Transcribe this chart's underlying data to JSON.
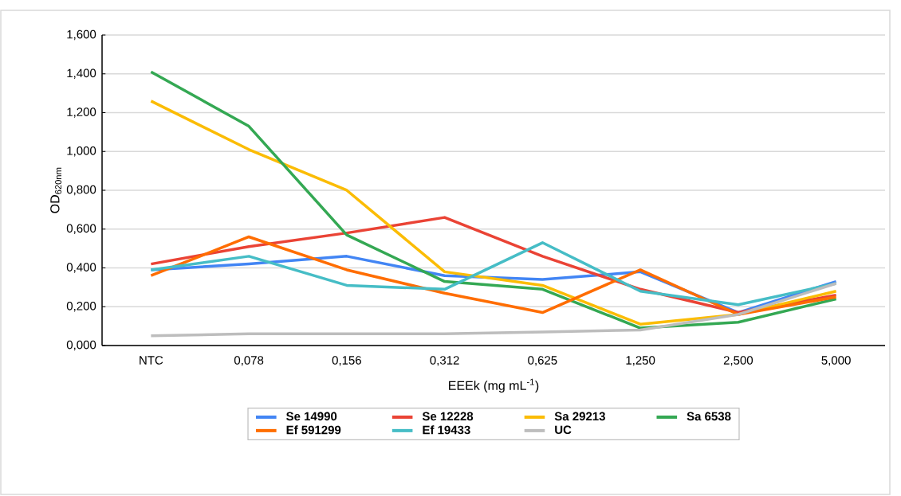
{
  "chart_data": {
    "type": "line",
    "xlabel": "EEEk (mg mL$^{-1}$)",
    "ylabel": "OD$_{620nm}$",
    "categories": [
      "NTC",
      "0,078",
      "0,156",
      "0,312",
      "0,625",
      "1,250",
      "2,500",
      "5,000"
    ],
    "ylim": [
      0,
      1.6
    ],
    "yticks": [
      {
        "value": 0,
        "label": "0,000"
      },
      {
        "value": 0.2,
        "label": "0,200"
      },
      {
        "value": 0.4,
        "label": "0,400"
      },
      {
        "value": 0.6,
        "label": "0,600"
      },
      {
        "value": 0.8,
        "label": "0,800"
      },
      {
        "value": 1.0,
        "label": "1,000"
      },
      {
        "value": 1.2,
        "label": "1,200"
      },
      {
        "value": 1.4,
        "label": "1,400"
      },
      {
        "value": 1.6,
        "label": "1,600"
      }
    ],
    "grid": "y",
    "legend": "bottom",
    "marker": "none",
    "line_style": "solid",
    "series": [
      {
        "name": "Se 14990",
        "color": "#4285f4",
        "values": [
          0.39,
          0.42,
          0.46,
          0.36,
          0.34,
          0.38,
          0.17,
          0.33
        ]
      },
      {
        "name": "Se 12228",
        "color": "#ea4335",
        "values": [
          0.42,
          0.51,
          0.58,
          0.66,
          0.46,
          0.29,
          0.17,
          0.26
        ]
      },
      {
        "name": "Sa 29213",
        "color": "#fbbc04",
        "values": [
          1.26,
          1.01,
          0.8,
          0.38,
          0.31,
          0.11,
          0.16,
          0.28
        ]
      },
      {
        "name": "Sa 6538",
        "color": "#34a853",
        "values": [
          1.41,
          1.13,
          0.57,
          0.33,
          0.29,
          0.09,
          0.12,
          0.24
        ]
      },
      {
        "name": "Ef 591299",
        "color": "#ff6d01",
        "values": [
          0.36,
          0.56,
          0.39,
          0.27,
          0.17,
          0.39,
          0.16,
          0.25
        ]
      },
      {
        "name": "Ef 19433",
        "color": "#46bdc6",
        "values": [
          0.39,
          0.46,
          0.31,
          0.29,
          0.53,
          0.28,
          0.21,
          0.32
        ]
      },
      {
        "name": "UC",
        "color": "#bdbdbd",
        "values": [
          0.05,
          0.06,
          0.06,
          0.06,
          0.07,
          0.08,
          0.16,
          0.32
        ]
      }
    ]
  }
}
